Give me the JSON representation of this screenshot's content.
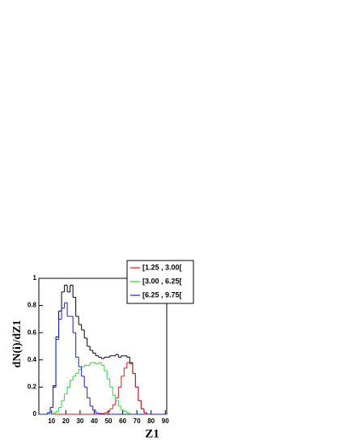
{
  "chart_data": {
    "type": "histogram",
    "x_label": "Z1",
    "y_label": "dN(i)/dZ1",
    "bins": [
      1,
      3,
      5,
      7,
      9,
      11,
      13,
      15,
      17,
      19,
      21,
      23,
      25,
      27,
      29,
      31,
      33,
      35,
      37,
      39,
      41,
      43,
      45,
      47,
      49,
      51,
      53,
      55,
      57,
      59,
      61,
      63,
      65,
      67,
      69,
      71,
      73,
      75,
      77,
      79,
      81,
      83,
      85,
      87,
      89,
      91
    ],
    "series": [
      {
        "color": "#000000",
        "values": [
          0,
          0,
          0,
          0.01,
          0.05,
          0.21,
          0.57,
          0.76,
          0.9,
          0.95,
          0.9,
          0.95,
          0.86,
          0.72,
          0.66,
          0.62,
          0.56,
          0.5,
          0.47,
          0.45,
          0.43,
          0.42,
          0.41,
          0.42,
          0.42,
          0.43,
          0.43,
          0.44,
          0.42,
          0.43,
          0.43,
          0.42,
          0.38,
          0.3,
          0.2,
          0.1,
          0.04,
          0.01,
          0,
          0,
          0,
          0,
          0,
          0,
          0
        ]
      },
      {
        "name": "[1.25 , 3.00[",
        "color": "#e0141e",
        "values": [
          0,
          0,
          0,
          0,
          0,
          0,
          0,
          0,
          0,
          0,
          0,
          0,
          0,
          0,
          0,
          0,
          0,
          0,
          0,
          0,
          0,
          0,
          0.005,
          0.01,
          0.02,
          0.04,
          0.07,
          0.12,
          0.2,
          0.28,
          0.34,
          0.38,
          0.37,
          0.3,
          0.2,
          0.1,
          0.04,
          0.01,
          0,
          0,
          0,
          0,
          0,
          0,
          0
        ]
      },
      {
        "name": "[3.00 , 6.25[",
        "color": "#3ccc3c",
        "values": [
          0,
          0,
          0,
          0,
          0,
          0.01,
          0.02,
          0.05,
          0.1,
          0.15,
          0.2,
          0.25,
          0.28,
          0.3,
          0.33,
          0.35,
          0.36,
          0.36,
          0.38,
          0.38,
          0.37,
          0.38,
          0.36,
          0.32,
          0.26,
          0.2,
          0.14,
          0.1,
          0.06,
          0.03,
          0.02,
          0.01,
          0,
          0,
          0,
          0,
          0,
          0,
          0,
          0,
          0,
          0,
          0,
          0,
          0
        ]
      },
      {
        "name": "[6.25 , 9.75[",
        "color": "#1420d0",
        "values": [
          0,
          0,
          0,
          0.01,
          0.05,
          0.2,
          0.55,
          0.7,
          0.78,
          0.82,
          0.72,
          0.72,
          0.6,
          0.42,
          0.35,
          0.28,
          0.2,
          0.12,
          0.06,
          0.03,
          0.01,
          0.005,
          0,
          0,
          0,
          0,
          0,
          0,
          0,
          0,
          0,
          0,
          0,
          0,
          0,
          0,
          0,
          0,
          0,
          0,
          0,
          0,
          0,
          0,
          0
        ]
      }
    ],
    "xlim": [
      1,
      91
    ],
    "ylim": [
      0,
      1
    ],
    "xticks": [
      10,
      20,
      30,
      40,
      50,
      60,
      70,
      80,
      90
    ],
    "yticks": [
      0,
      0.2,
      0.4,
      0.6,
      0.8,
      1
    ],
    "legend": "top-right"
  }
}
